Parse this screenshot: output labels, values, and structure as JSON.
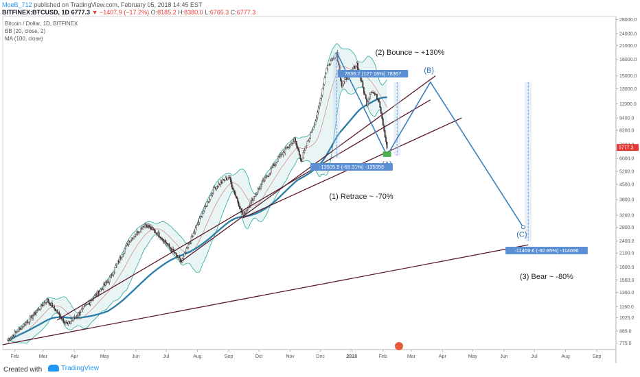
{
  "header": {
    "author": "MoeB_712",
    "published": "published on TradingView.com, February 05, 2018 14:45 EST",
    "symbol": "BITFINEX:BTCUSD, 1D",
    "last": "6777.3",
    "change": "−1407.9 (−17.2%)",
    "o_label": "O:",
    "o_value": "8185.2",
    "h_label": "H:",
    "h_value": "8380.0",
    "l_label": "L:",
    "l_value": "6765.3",
    "c_label": "C:",
    "c_value": "6777.3"
  },
  "indicators": {
    "title": "Bitcoin / Dollar, 1D, BITFINEX",
    "bb": "BB (20, close, 2)",
    "ma": "MA (100, close)"
  },
  "chart_data": {
    "type": "candlestick",
    "scale": "log",
    "ylim": [
      720,
      29000
    ],
    "y_ticks": [
      "28000.0",
      "24000.0",
      "21000.0",
      "18000.0",
      "15000.0",
      "13000.0",
      "11000.0",
      "9400.0",
      "8200.0",
      "7000.0",
      "6000.0",
      "5200.0",
      "4500.0",
      "3800.0",
      "3200.0",
      "2800.0",
      "2400.0",
      "2100.0",
      "1800.0",
      "1560.0",
      "1360.0",
      "1160.0",
      "1025.0",
      "885.0",
      "775.0"
    ],
    "x_ticks": [
      "Feb",
      "Mar",
      "Apr",
      "May",
      "Jun",
      "Jul",
      "Aug",
      "Sep",
      "Oct",
      "Nov",
      "Dec",
      "2018",
      "Feb",
      "Mar",
      "Apr",
      "May",
      "Jun",
      "Jul",
      "Aug",
      "Sep"
    ],
    "x_range": [
      "2017-01-20",
      "2018-09-20"
    ],
    "last_price_label": "6777.3",
    "price_path": [
      [
        "2017-01-25",
        800
      ],
      [
        "2017-02-15",
        1000
      ],
      [
        "2017-03-05",
        1250
      ],
      [
        "2017-03-25",
        950
      ],
      [
        "2017-04-15",
        1200
      ],
      [
        "2017-05-05",
        1550
      ],
      [
        "2017-05-25",
        2400
      ],
      [
        "2017-06-10",
        2900
      ],
      [
        "2017-06-25",
        2550
      ],
      [
        "2017-07-16",
        1900
      ],
      [
        "2017-08-05",
        3200
      ],
      [
        "2017-08-18",
        4350
      ],
      [
        "2017-09-01",
        4900
      ],
      [
        "2017-09-15",
        3200
      ],
      [
        "2017-10-01",
        4300
      ],
      [
        "2017-10-20",
        6000
      ],
      [
        "2017-11-05",
        7400
      ],
      [
        "2017-11-12",
        5900
      ],
      [
        "2017-11-28",
        9800
      ],
      [
        "2017-12-07",
        16500
      ],
      [
        "2017-12-17",
        19500
      ],
      [
        "2017-12-22",
        13500
      ],
      [
        "2018-01-06",
        17200
      ],
      [
        "2018-01-16",
        11000
      ],
      [
        "2018-01-20",
        12800
      ],
      [
        "2018-01-28",
        11500
      ],
      [
        "2018-02-05",
        6777
      ]
    ],
    "trendlines": [
      {
        "from": [
          "2017-03-15",
          1000
        ],
        "to": [
          "2018-03-20",
          11500
        ]
      },
      {
        "from": [
          "2017-07-15",
          1900
        ],
        "to": [
          "2018-03-25",
          15000
        ]
      },
      {
        "from": [
          "2017-09-15",
          3100
        ],
        "to": [
          "2018-04-20",
          9400
        ]
      },
      {
        "from": [
          "2017-01-20",
          760
        ],
        "to": [
          "2018-06-25",
          2300
        ]
      }
    ],
    "projection": [
      {
        "label": "(A)",
        "date": "2018-02-05",
        "price": 6200
      },
      {
        "label": "(B)",
        "date": "2018-03-20",
        "price": 14000
      },
      {
        "label": "(C)",
        "date": "2018-06-20",
        "price": 2800
      }
    ],
    "measurements": [
      {
        "label": "-13505.9 (-69.31%) -135059",
        "from_date": "2017-12-17",
        "top": 19500,
        "bottom": 6000
      },
      {
        "label": "7836.7 (127.16%) 78367",
        "from_date": "2018-02-15",
        "top": 14000,
        "bottom": 6200
      },
      {
        "label": "-11469.6 (-82.85%) -114696",
        "from_date": "2018-06-25",
        "top": 14000,
        "bottom": 2400
      }
    ],
    "annotations": [
      {
        "text": "(2) Bounce ~ +130%"
      },
      {
        "text": "(1) Retrace ~ -70%"
      },
      {
        "text": "(3) Bear ~ -80%"
      }
    ]
  },
  "footer": {
    "created_with": "Created with",
    "brand": "TradingView"
  }
}
